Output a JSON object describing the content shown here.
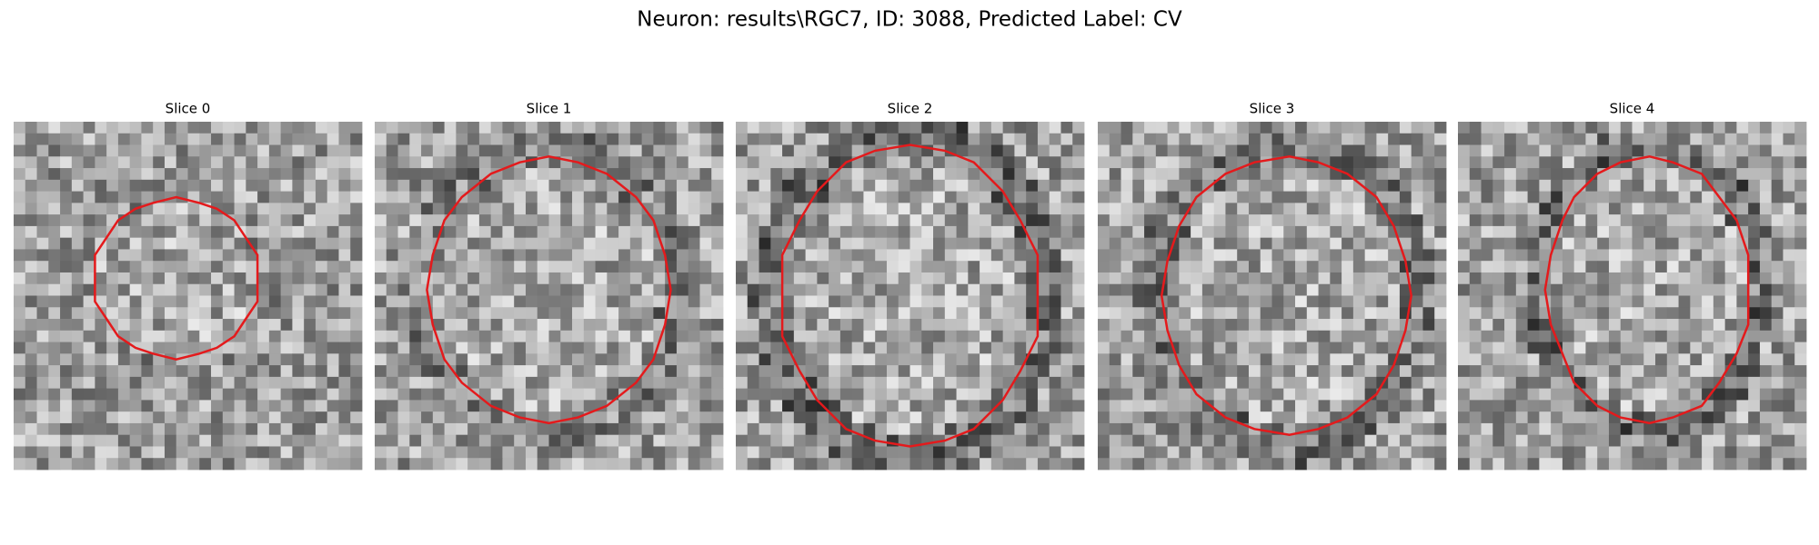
{
  "title": "Neuron: results\\RGC7, ID: 3088, Predicted Label: CV",
  "panels": [
    {
      "title": "Slice 0"
    },
    {
      "title": "Slice 1"
    },
    {
      "title": "Slice 2"
    },
    {
      "title": "Slice 3"
    },
    {
      "title": "Slice 4"
    }
  ]
}
